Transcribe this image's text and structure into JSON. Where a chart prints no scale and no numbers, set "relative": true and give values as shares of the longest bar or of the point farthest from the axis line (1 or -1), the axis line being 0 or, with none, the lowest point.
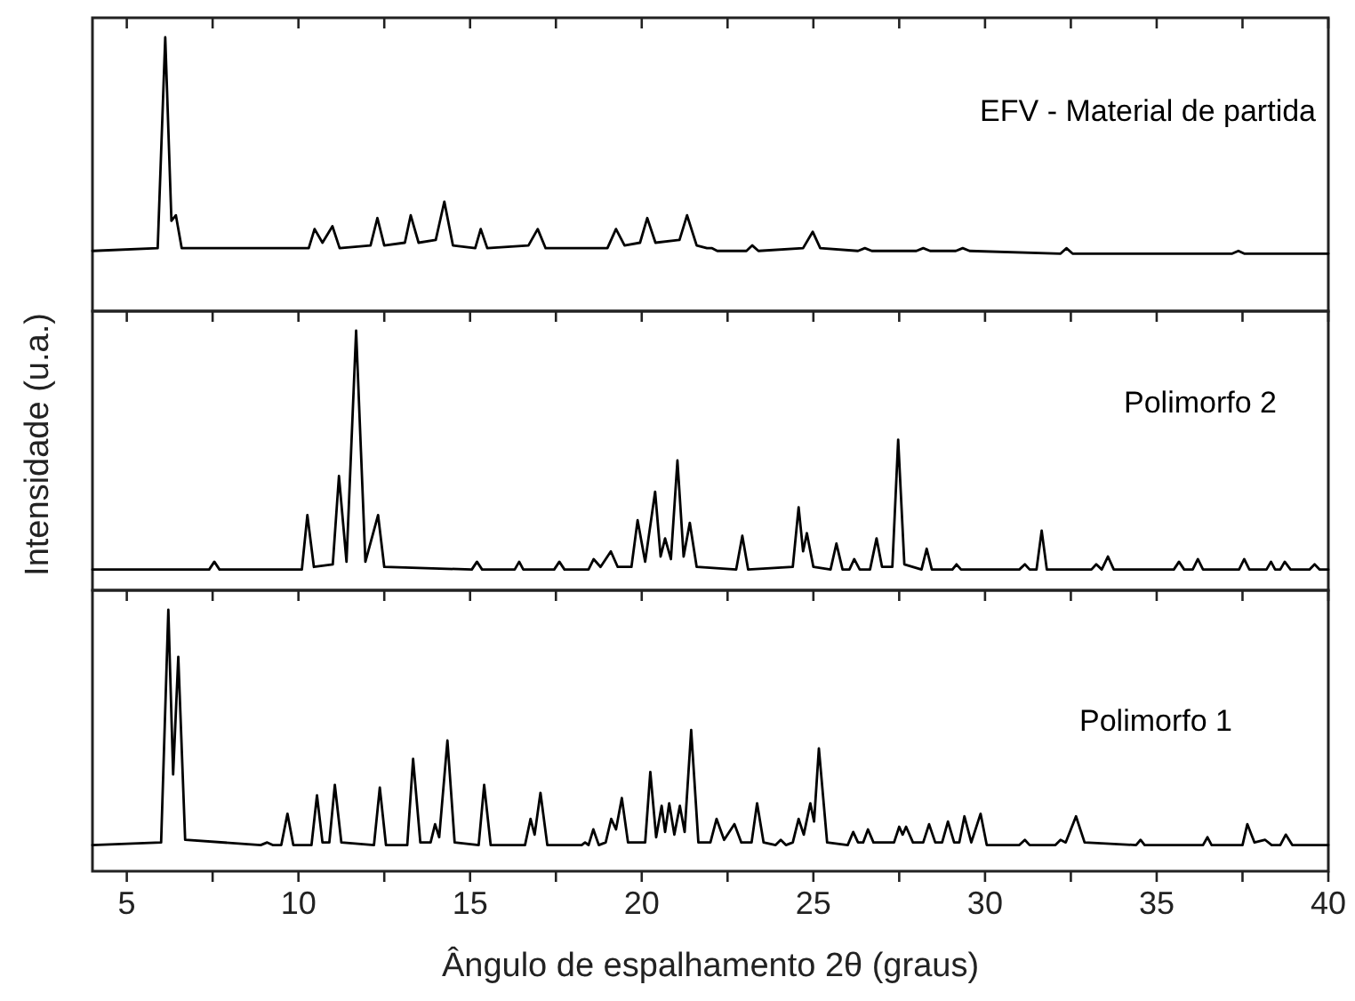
{
  "chart_data": [
    {
      "type": "line",
      "relative": true,
      "tick_labels": false,
      "xlim": [
        4,
        40
      ],
      "xticks": [
        5,
        {
          "value": 7.5,
          "label": null
        },
        10,
        {
          "value": 12.5,
          "label": null
        },
        15,
        {
          "value": 17.5,
          "label": null
        },
        20,
        {
          "value": 22.5,
          "label": null
        },
        25,
        {
          "value": 27.5,
          "label": null
        },
        30,
        {
          "value": 32.5,
          "label": null
        },
        35,
        {
          "value": 37.5,
          "label": null
        },
        40
      ],
      "series": [
        {
          "name": "EFV - Material de partida",
          "color": "#000000",
          "x": [
            4,
            5.9,
            6.12,
            6.3,
            6.43,
            6.6,
            10.3,
            10.47,
            10.7,
            10.99,
            11.2,
            12.1,
            12.3,
            12.5,
            13.1,
            13.27,
            13.5,
            14.0,
            14.25,
            14.5,
            15.15,
            15.31,
            15.5,
            16.7,
            16.97,
            17.2,
            19.0,
            19.25,
            19.5,
            19.95,
            20.16,
            20.4,
            21.1,
            21.32,
            21.6,
            21.9,
            22.05,
            22.2,
            23.05,
            23.22,
            23.4,
            24.7,
            24.98,
            25.2,
            26.3,
            26.5,
            26.7,
            28.0,
            28.2,
            28.4,
            29.15,
            29.35,
            29.55,
            32.2,
            32.37,
            32.55,
            37.2,
            37.38,
            37.55,
            40
          ],
          "values": [
            0.22,
            0.23,
            1,
            0.33,
            0.35,
            0.23,
            0.23,
            0.3,
            0.25,
            0.31,
            0.23,
            0.24,
            0.34,
            0.24,
            0.25,
            0.35,
            0.25,
            0.26,
            0.4,
            0.24,
            0.23,
            0.3,
            0.23,
            0.24,
            0.3,
            0.23,
            0.23,
            0.3,
            0.24,
            0.25,
            0.34,
            0.25,
            0.26,
            0.35,
            0.24,
            0.23,
            0.23,
            0.22,
            0.22,
            0.24,
            0.22,
            0.23,
            0.29,
            0.23,
            0.22,
            0.23,
            0.22,
            0.22,
            0.23,
            0.22,
            0.22,
            0.23,
            0.22,
            0.21,
            0.23,
            0.21,
            0.21,
            0.22,
            0.21,
            0.21
          ]
        }
      ]
    },
    {
      "type": "line",
      "relative": true,
      "tick_labels": false,
      "ylabel": "Intensidade (u.a.)",
      "xlim": [
        4,
        40
      ],
      "xticks": [
        5,
        {
          "value": 7.5,
          "label": null
        },
        10,
        {
          "value": 12.5,
          "label": null
        },
        15,
        {
          "value": 17.5,
          "label": null
        },
        20,
        {
          "value": 22.5,
          "label": null
        },
        25,
        {
          "value": 27.5,
          "label": null
        },
        30,
        {
          "value": 32.5,
          "label": null
        },
        35,
        {
          "value": 37.5,
          "label": null
        },
        40
      ],
      "series": [
        {
          "name": "Polimorfo 2",
          "color": "#000000",
          "x": [
            4,
            7.4,
            7.55,
            7.7,
            10.1,
            10.26,
            10.45,
            11.0,
            11.18,
            11.4,
            11.68,
            11.95,
            12.32,
            12.5,
            15.05,
            15.2,
            15.35,
            16.3,
            16.43,
            16.55,
            17.45,
            17.6,
            17.75,
            18.45,
            18.6,
            18.8,
            19.1,
            19.3,
            19.7,
            19.88,
            20.1,
            20.39,
            20.55,
            20.68,
            20.85,
            21.04,
            21.22,
            21.4,
            21.6,
            22.75,
            22.93,
            23.1,
            24.4,
            24.57,
            24.7,
            24.81,
            25.0,
            25.5,
            25.67,
            25.85,
            26.05,
            26.19,
            26.35,
            26.65,
            26.84,
            27.0,
            27.3,
            27.47,
            27.65,
            28.15,
            28.3,
            28.45,
            29.05,
            29.17,
            29.3,
            31.0,
            31.16,
            31.3,
            31.5,
            31.65,
            31.8,
            33.1,
            33.24,
            33.4,
            33.58,
            33.75,
            35.5,
            35.65,
            35.8,
            36.05,
            36.2,
            36.35,
            37.4,
            37.55,
            37.7,
            38.2,
            38.33,
            38.45,
            38.6,
            38.73,
            38.9,
            39.45,
            39.6,
            39.75,
            40
          ],
          "values": [
            0.08,
            0.08,
            0.11,
            0.08,
            0.08,
            0.29,
            0.09,
            0.1,
            0.44,
            0.11,
            1,
            0.11,
            0.29,
            0.09,
            0.08,
            0.11,
            0.08,
            0.08,
            0.11,
            0.08,
            0.08,
            0.11,
            0.08,
            0.08,
            0.12,
            0.09,
            0.15,
            0.09,
            0.09,
            0.27,
            0.11,
            0.38,
            0.13,
            0.2,
            0.12,
            0.5,
            0.13,
            0.26,
            0.09,
            0.08,
            0.21,
            0.08,
            0.09,
            0.32,
            0.15,
            0.22,
            0.09,
            0.08,
            0.18,
            0.08,
            0.08,
            0.12,
            0.08,
            0.08,
            0.2,
            0.09,
            0.09,
            0.58,
            0.1,
            0.08,
            0.16,
            0.08,
            0.08,
            0.1,
            0.08,
            0.08,
            0.1,
            0.08,
            0.08,
            0.23,
            0.08,
            0.08,
            0.1,
            0.08,
            0.13,
            0.08,
            0.08,
            0.11,
            0.08,
            0.08,
            0.12,
            0.08,
            0.08,
            0.12,
            0.08,
            0.08,
            0.11,
            0.08,
            0.08,
            0.11,
            0.08,
            0.08,
            0.1,
            0.08,
            0.08
          ]
        }
      ]
    },
    {
      "type": "line",
      "relative": true,
      "tick_labels": "x",
      "xlabel": "Ângulo de espalhamento 2θ (graus)",
      "xlim": [
        4,
        40
      ],
      "xticks": [
        5,
        {
          "value": 7.5,
          "label": null
        },
        10,
        {
          "value": 12.5,
          "label": null
        },
        15,
        {
          "value": 17.5,
          "label": null
        },
        20,
        {
          "value": 22.5,
          "label": null
        },
        25,
        {
          "value": 27.5,
          "label": null
        },
        30,
        {
          "value": 32.5,
          "label": null
        },
        35,
        {
          "value": 37.5,
          "label": null
        },
        40
      ],
      "series": [
        {
          "name": "Polimorfo 1",
          "color": "#000000",
          "x": [
            4,
            6.0,
            6.21,
            6.35,
            6.5,
            6.7,
            8.9,
            9.09,
            9.25,
            9.5,
            9.68,
            9.85,
            10.38,
            10.54,
            10.7,
            10.9,
            11.06,
            11.25,
            12.2,
            12.37,
            12.55,
            13.17,
            13.34,
            13.55,
            13.85,
            13.98,
            14.1,
            14.34,
            14.55,
            15.25,
            15.41,
            15.6,
            16.6,
            16.76,
            16.88,
            17.05,
            17.25,
            18.25,
            18.35,
            18.45,
            18.59,
            18.75,
            18.95,
            19.11,
            19.25,
            19.42,
            19.6,
            20.1,
            20.25,
            20.42,
            20.58,
            20.68,
            20.8,
            20.95,
            21.11,
            21.25,
            21.44,
            21.65,
            22.0,
            22.18,
            22.4,
            22.7,
            22.9,
            23.2,
            23.36,
            23.55,
            23.9,
            24.05,
            24.2,
            24.4,
            24.57,
            24.72,
            24.91,
            25.02,
            25.16,
            25.4,
            26.0,
            26.16,
            26.3,
            26.45,
            26.59,
            26.75,
            27.35,
            27.5,
            27.6,
            27.7,
            27.9,
            28.2,
            28.37,
            28.55,
            28.75,
            28.92,
            29.1,
            29.25,
            29.4,
            29.6,
            29.87,
            30.05,
            31.0,
            31.16,
            31.3,
            32.05,
            32.2,
            32.35,
            32.65,
            32.9,
            34.4,
            34.53,
            34.65,
            36.35,
            36.48,
            36.6,
            37.5,
            37.64,
            37.85,
            38.16,
            38.35,
            38.6,
            38.76,
            38.95,
            40
          ],
          "values": [
            0.1,
            0.11,
            1,
            0.37,
            0.82,
            0.12,
            0.1,
            0.11,
            0.1,
            0.1,
            0.22,
            0.1,
            0.1,
            0.29,
            0.11,
            0.11,
            0.33,
            0.11,
            0.1,
            0.32,
            0.1,
            0.1,
            0.43,
            0.11,
            0.11,
            0.18,
            0.13,
            0.5,
            0.11,
            0.1,
            0.33,
            0.1,
            0.1,
            0.2,
            0.14,
            0.3,
            0.1,
            0.1,
            0.11,
            0.1,
            0.16,
            0.1,
            0.11,
            0.2,
            0.16,
            0.28,
            0.11,
            0.11,
            0.38,
            0.13,
            0.25,
            0.15,
            0.26,
            0.14,
            0.25,
            0.15,
            0.54,
            0.11,
            0.11,
            0.2,
            0.12,
            0.18,
            0.11,
            0.11,
            0.26,
            0.11,
            0.1,
            0.12,
            0.1,
            0.11,
            0.2,
            0.14,
            0.26,
            0.19,
            0.47,
            0.11,
            0.1,
            0.15,
            0.11,
            0.11,
            0.16,
            0.11,
            0.11,
            0.17,
            0.14,
            0.17,
            0.11,
            0.11,
            0.18,
            0.11,
            0.11,
            0.19,
            0.11,
            0.11,
            0.21,
            0.11,
            0.22,
            0.1,
            0.1,
            0.12,
            0.1,
            0.1,
            0.12,
            0.11,
            0.21,
            0.11,
            0.1,
            0.12,
            0.1,
            0.1,
            0.13,
            0.1,
            0.1,
            0.18,
            0.11,
            0.12,
            0.1,
            0.1,
            0.14,
            0.1,
            0.1
          ]
        }
      ]
    }
  ]
}
